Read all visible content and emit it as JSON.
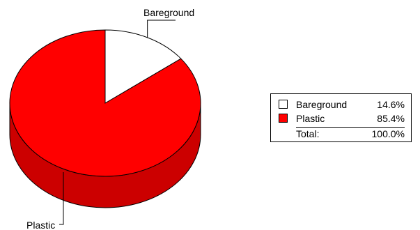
{
  "chart_data": {
    "type": "pie",
    "style": "3d",
    "slices": [
      {
        "label": "Bareground",
        "value": 14.6,
        "value_label": "14.6%",
        "color": "#ffffff"
      },
      {
        "label": "Plastic",
        "value": 85.4,
        "value_label": "85.4%",
        "color": "#ff0000"
      }
    ],
    "legend": {
      "placement": "right",
      "total_label": "Total:",
      "total_value": "100.0%"
    }
  }
}
